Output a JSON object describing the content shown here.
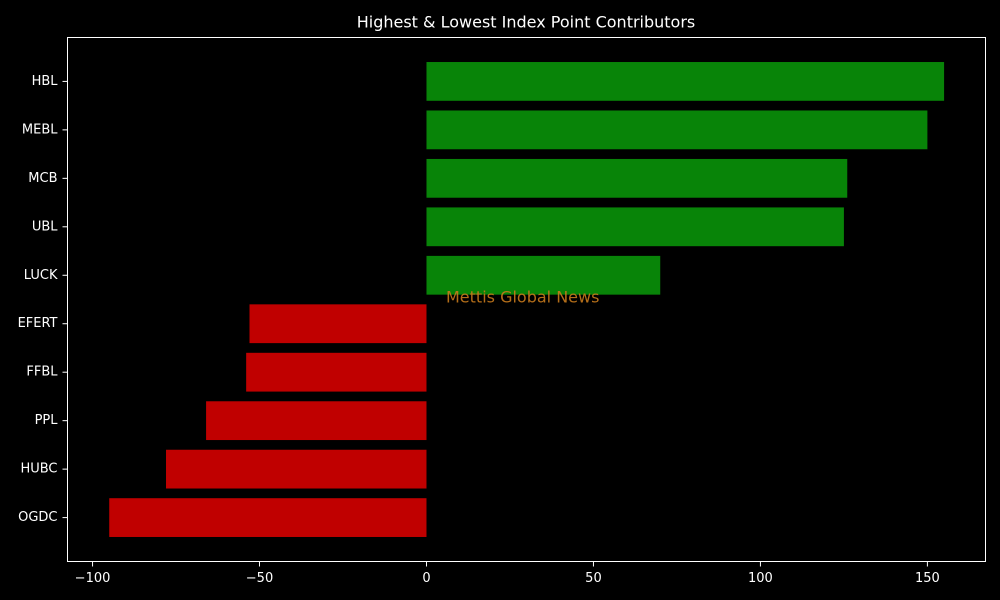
{
  "chart_data": {
    "type": "barh",
    "title": "Highest & Lowest Index Point Contributors",
    "categories": [
      "HBL",
      "MEBL",
      "MCB",
      "UBL",
      "LUCK",
      "EFERT",
      "FFBL",
      "PPL",
      "HUBC",
      "OGDC"
    ],
    "values": [
      155,
      150,
      126,
      125,
      70,
      -53,
      -54,
      -66,
      -78,
      -95
    ],
    "colors": [
      "#088408",
      "#088408",
      "#088408",
      "#088408",
      "#088408",
      "#c00000",
      "#c00000",
      "#c00000",
      "#c00000",
      "#c00000"
    ],
    "xlim": [
      -107.5,
      167.4
    ],
    "xticks": [
      {
        "value": -100,
        "label": "−100"
      },
      {
        "value": -50,
        "label": "−50"
      },
      0,
      50,
      100,
      150
    ],
    "annotation": "Mettis Global News"
  }
}
